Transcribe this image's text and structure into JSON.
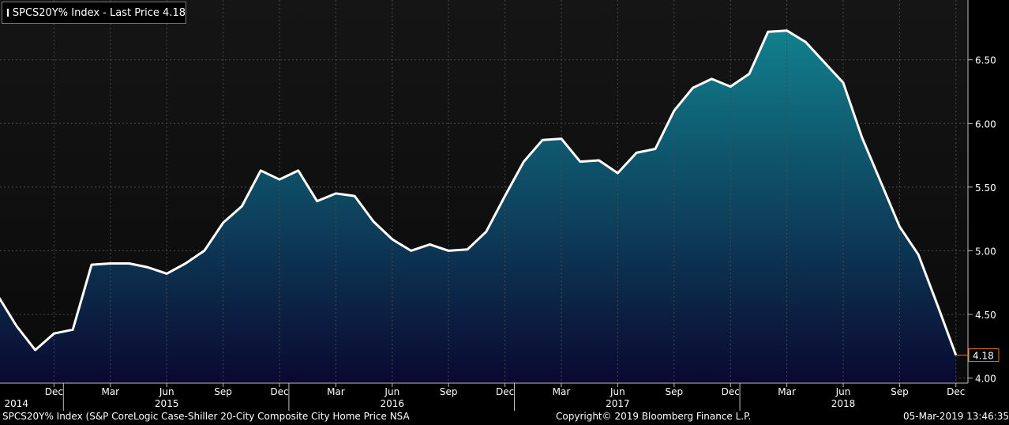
{
  "legend": {
    "label": "SPCS20Y% Index - Last Price 4.18"
  },
  "footer": {
    "description": "SPCS20Y% Index (S&P CoreLogic Case-Shiller 20-City Composite City Home Price NSA",
    "copyright": "Copyright© 2019 Bloomberg Finance L.P.",
    "timestamp": "05-Mar-2019 13:46:35"
  },
  "colors": {
    "background": "#000000",
    "plot_top": "#151515",
    "plot_bottom": "#0a0a0a",
    "fill_top": "#11808d",
    "fill_bottom": "#0a0830",
    "line": "#ffffff",
    "grid": "#4a4a4a",
    "last_price": "#f07800"
  },
  "chart_data": {
    "type": "area",
    "series": [
      {
        "name": "SPCS20Y% Index",
        "x": [
          "2014-09",
          "2014-10",
          "2014-11",
          "2014-12",
          "2015-01",
          "2015-02",
          "2015-03",
          "2015-04",
          "2015-05",
          "2015-06",
          "2015-07",
          "2015-08",
          "2015-09",
          "2015-10",
          "2015-11",
          "2015-12",
          "2016-01",
          "2016-02",
          "2016-03",
          "2016-04",
          "2016-05",
          "2016-06",
          "2016-07",
          "2016-08",
          "2016-09",
          "2016-10",
          "2016-11",
          "2016-12",
          "2017-01",
          "2017-02",
          "2017-03",
          "2017-04",
          "2017-05",
          "2017-06",
          "2017-07",
          "2017-08",
          "2017-09",
          "2017-10",
          "2017-11",
          "2017-12",
          "2018-01",
          "2018-02",
          "2018-03",
          "2018-04",
          "2018-05",
          "2018-06",
          "2018-07",
          "2018-08",
          "2018-09",
          "2018-10",
          "2018-11",
          "2018-12"
        ],
        "values": [
          4.65,
          4.41,
          4.22,
          4.35,
          4.38,
          4.89,
          4.9,
          4.9,
          4.87,
          4.82,
          4.9,
          5.0,
          5.22,
          5.35,
          5.63,
          5.56,
          5.63,
          5.39,
          5.45,
          5.43,
          5.23,
          5.09,
          5.0,
          5.05,
          5.0,
          5.01,
          5.15,
          5.43,
          5.7,
          5.87,
          5.88,
          5.7,
          5.71,
          5.61,
          5.77,
          5.8,
          6.1,
          6.28,
          6.35,
          6.29,
          6.39,
          6.72,
          6.73,
          6.64,
          6.48,
          6.32,
          5.89,
          5.54,
          5.19,
          4.97,
          4.58,
          4.18
        ]
      }
    ],
    "last_price": {
      "label": "4.18",
      "value": 4.18
    },
    "ylim": [
      3.96,
      6.97
    ],
    "y_ticks": [
      {
        "label": "4.00",
        "value": 4.0
      },
      {
        "label": "4.50",
        "value": 4.5
      },
      {
        "label": "5.00",
        "value": 5.0
      },
      {
        "label": "5.50",
        "value": 5.5
      },
      {
        "label": "6.00",
        "value": 6.0
      },
      {
        "label": "6.50",
        "value": 6.5
      }
    ],
    "x_ticks": [
      {
        "label": "Dec",
        "x": "2014-12"
      },
      {
        "label": "Mar",
        "x": "2015-03"
      },
      {
        "label": "Jun",
        "x": "2015-06"
      },
      {
        "label": "Sep",
        "x": "2015-09"
      },
      {
        "label": "Dec",
        "x": "2015-12"
      },
      {
        "label": "Mar",
        "x": "2016-03"
      },
      {
        "label": "Jun",
        "x": "2016-06"
      },
      {
        "label": "Sep",
        "x": "2016-09"
      },
      {
        "label": "Dec",
        "x": "2016-12"
      },
      {
        "label": "Mar",
        "x": "2017-03"
      },
      {
        "label": "Jun",
        "x": "2017-06"
      },
      {
        "label": "Sep",
        "x": "2017-09"
      },
      {
        "label": "Dec",
        "x": "2017-12"
      },
      {
        "label": "Mar",
        "x": "2018-03"
      },
      {
        "label": "Jun",
        "x": "2018-06"
      },
      {
        "label": "Sep",
        "x": "2018-09"
      },
      {
        "label": "Dec",
        "x": "2018-12"
      }
    ],
    "year_labels": [
      {
        "label": "2014",
        "x": "2014-10"
      },
      {
        "label": "2015",
        "x": "2015-06"
      },
      {
        "label": "2016",
        "x": "2016-06"
      },
      {
        "label": "2017",
        "x": "2017-06"
      },
      {
        "label": "2018",
        "x": "2018-06"
      }
    ],
    "grid": true,
    "y_axis_side": "right"
  }
}
